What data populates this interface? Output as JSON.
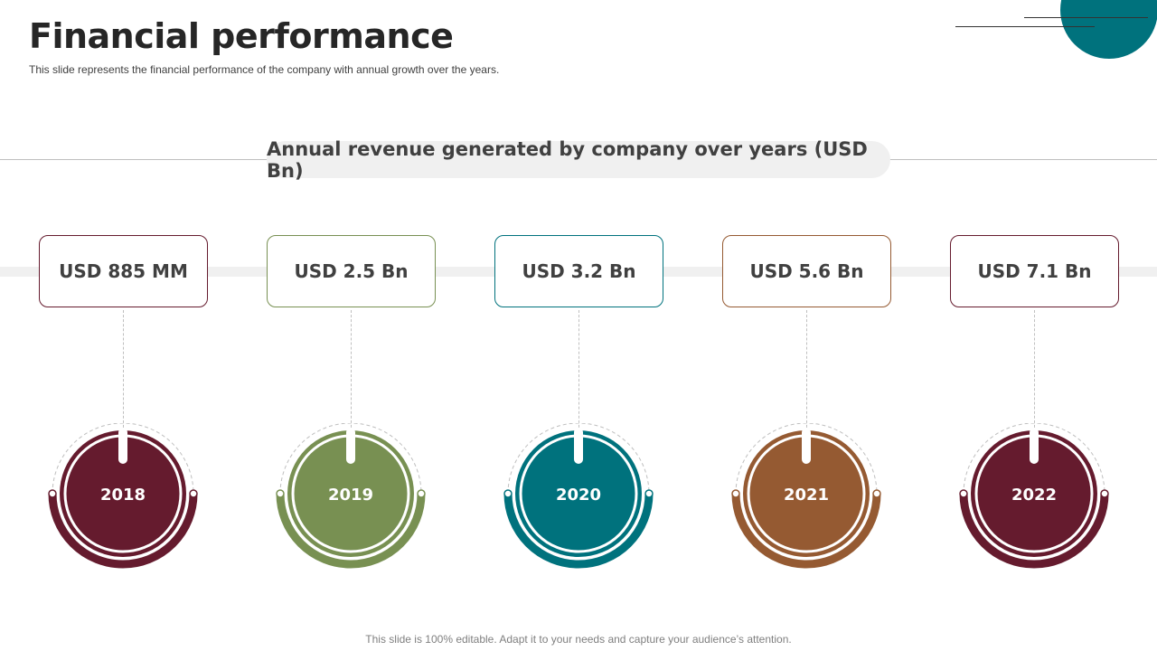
{
  "slide": {
    "title": "Financial performance",
    "subtitle": "This slide represents the financial performance of the company with annual growth over the years.",
    "footer": "This slide is 100% editable. Adapt it to your needs and capture your audience’s attention."
  },
  "colors": {
    "maroon": "#651b2e",
    "olive": "#789052",
    "teal": "#00727d",
    "brown": "#955a32",
    "accent_circle": "#00727d",
    "text_dark": "#404040"
  },
  "chart_data": {
    "type": "table",
    "title": "Annual revenue generated by company over years (USD Bn)",
    "categories": [
      "2018",
      "2019",
      "2020",
      "2021",
      "2022"
    ],
    "value_labels": [
      "USD 885 MM",
      "USD 2.5 Bn",
      "USD 3.2 Bn",
      "USD 5.6 Bn",
      "USD 7.1 Bn"
    ],
    "values": [
      0.885,
      2.5,
      3.2,
      5.6,
      7.1
    ],
    "unit": "USD Bn",
    "item_colors": [
      "#651b2e",
      "#789052",
      "#00727d",
      "#955a32",
      "#651b2e"
    ]
  }
}
